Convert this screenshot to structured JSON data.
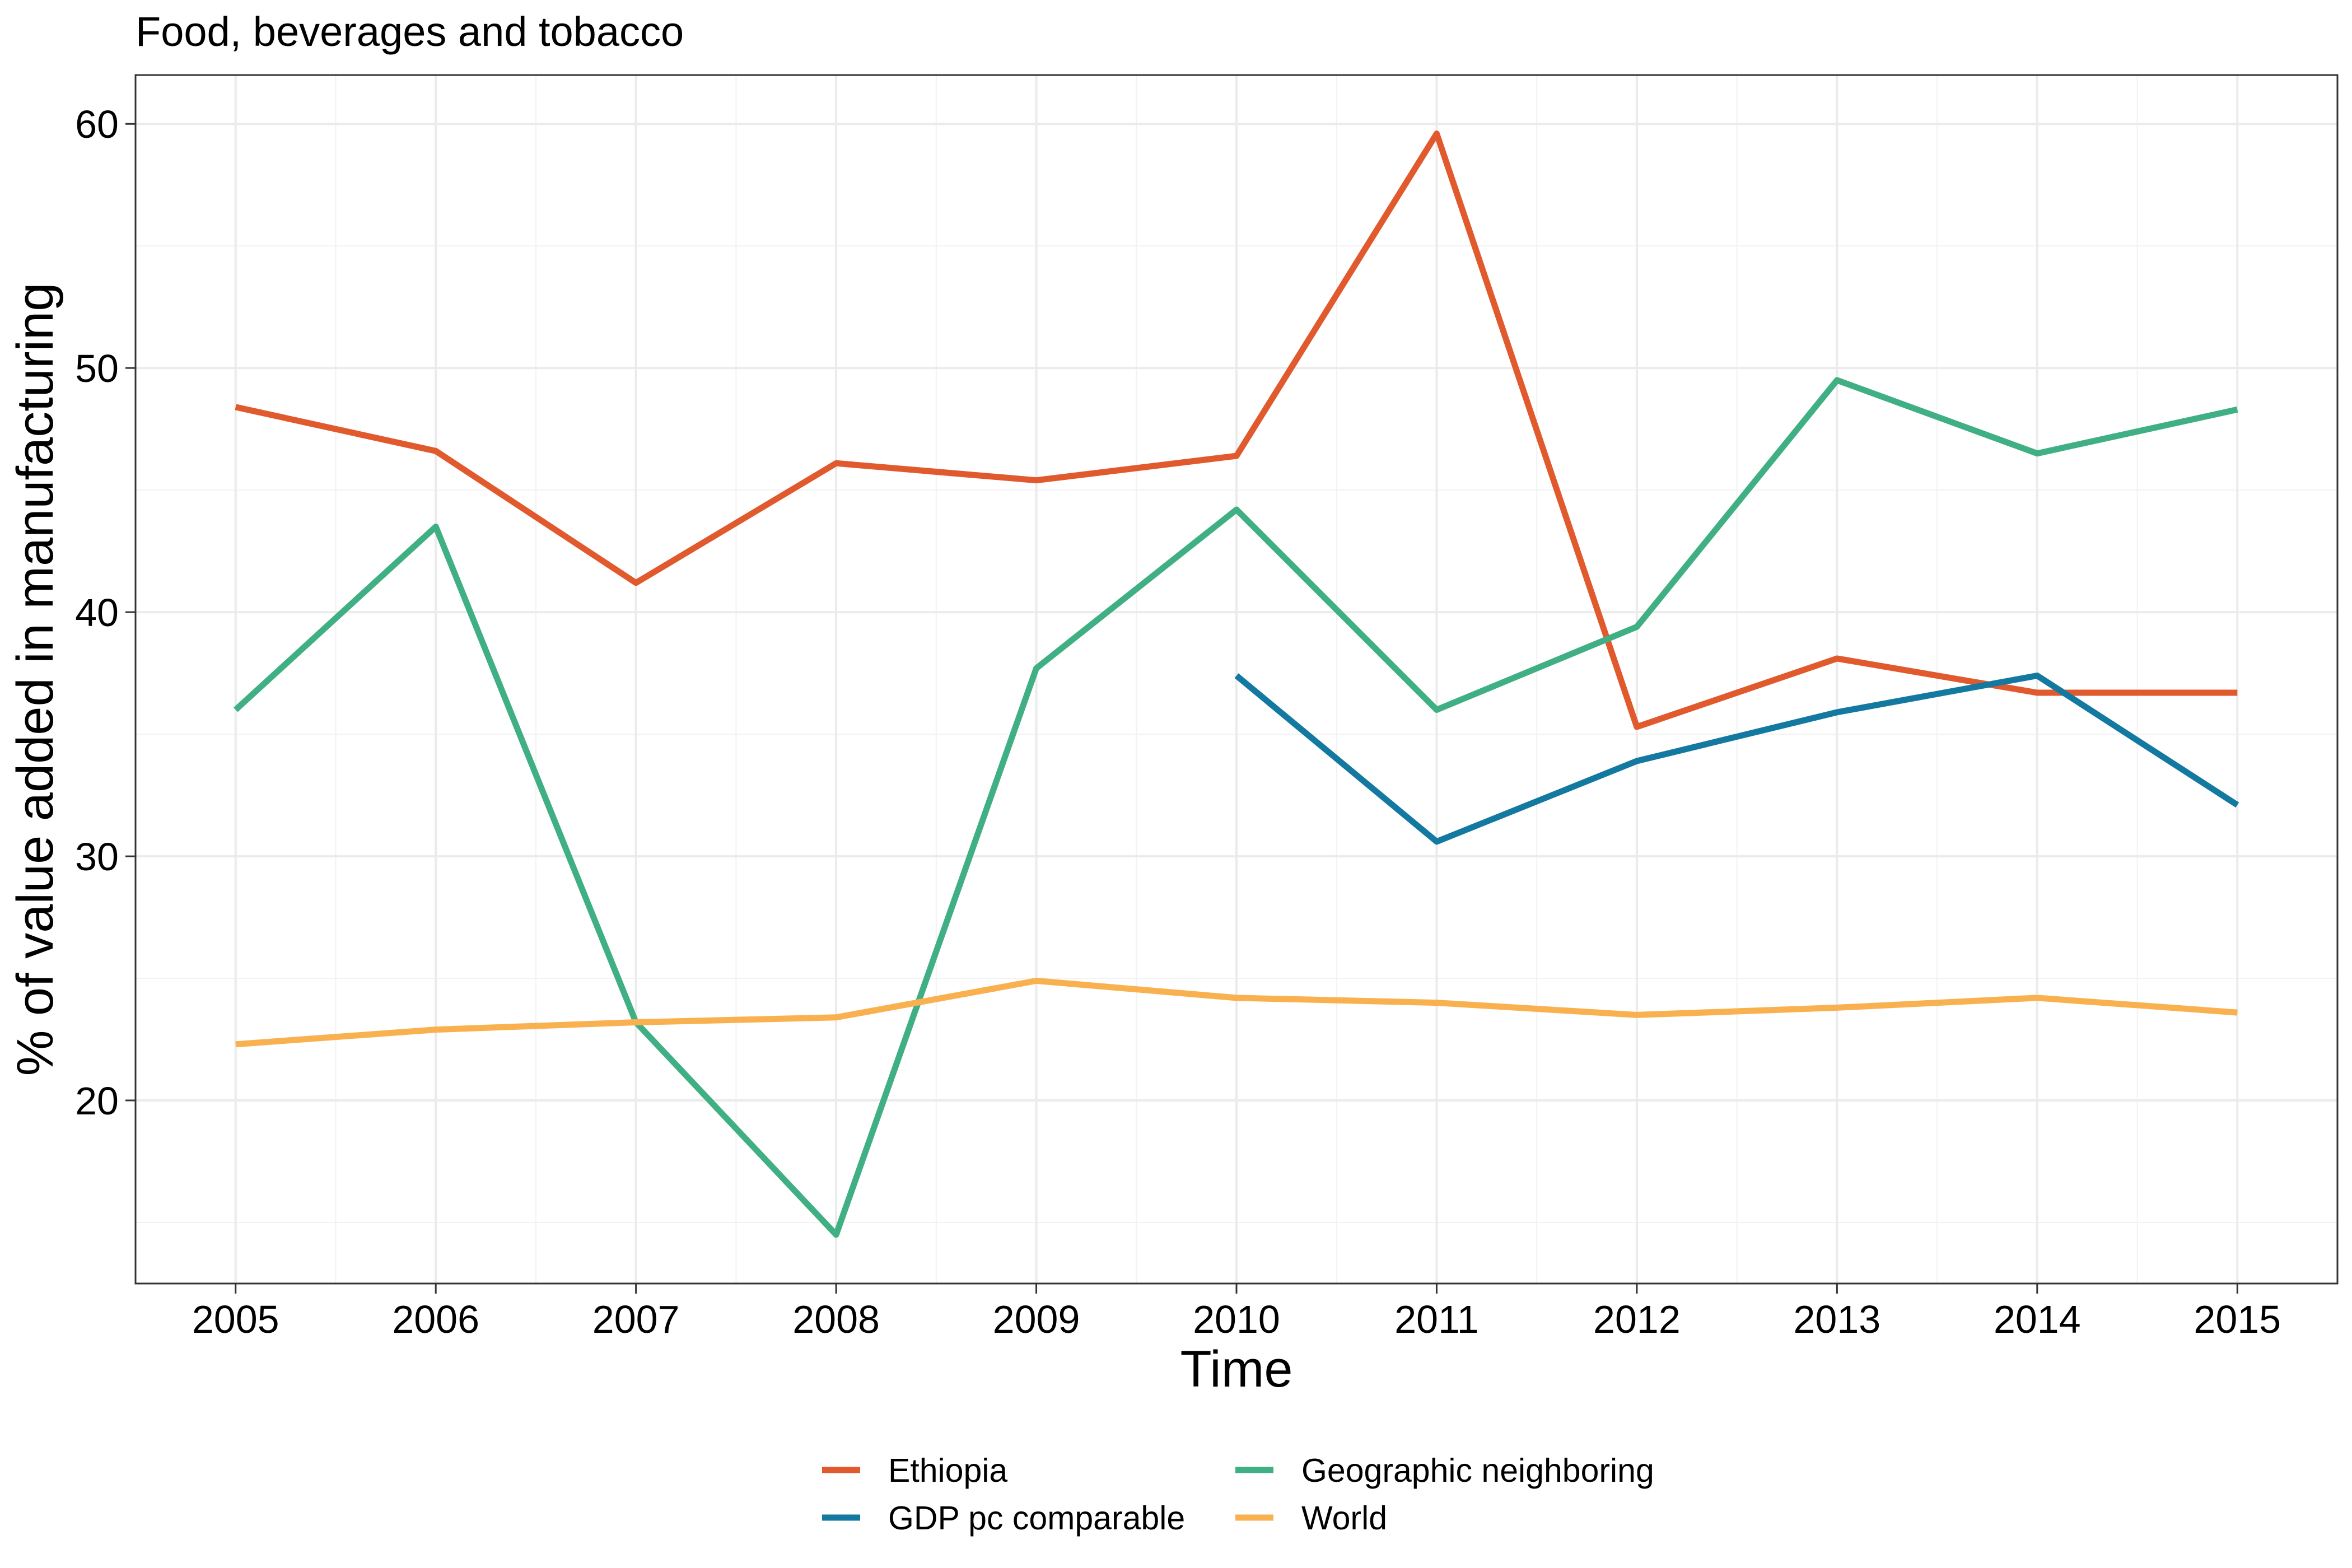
{
  "chart_data": {
    "type": "line",
    "title": "Food, beverages and tobacco",
    "xlabel": "Time",
    "ylabel": "% of value added in manufacturing",
    "x": [
      2005,
      2006,
      2007,
      2008,
      2009,
      2010,
      2011,
      2012,
      2013,
      2014,
      2015
    ],
    "x_tick_labels": [
      "2005",
      "2006",
      "2007",
      "2008",
      "2009",
      "2010",
      "2011",
      "2012",
      "2013",
      "2014",
      "2015"
    ],
    "y_ticks": [
      20,
      30,
      40,
      50,
      60
    ],
    "y_tick_labels": [
      "20",
      "30",
      "40",
      "50",
      "60"
    ],
    "xlim": [
      2004.5,
      2015.5
    ],
    "ylim": [
      12.5,
      62
    ],
    "grid": true,
    "legend_position": "bottom",
    "series": [
      {
        "name": "Ethiopia",
        "color": "#E15A2E",
        "values": [
          48.4,
          46.6,
          41.2,
          46.1,
          45.4,
          46.4,
          59.6,
          35.3,
          38.1,
          36.7,
          36.7
        ]
      },
      {
        "name": "GDP pc comparable",
        "color": "#1479A1",
        "values": [
          null,
          null,
          null,
          null,
          null,
          37.4,
          30.6,
          33.9,
          35.9,
          37.4,
          32.1
        ]
      },
      {
        "name": "Geographic neighboring",
        "color": "#40B084",
        "values": [
          36.0,
          43.5,
          23.2,
          14.5,
          37.7,
          44.2,
          36.0,
          39.4,
          49.5,
          46.5,
          48.3
        ]
      },
      {
        "name": "World",
        "color": "#F9B14F",
        "values": [
          22.3,
          22.9,
          23.2,
          23.4,
          24.9,
          24.2,
          24.0,
          23.5,
          23.8,
          24.2,
          23.6
        ]
      }
    ]
  }
}
